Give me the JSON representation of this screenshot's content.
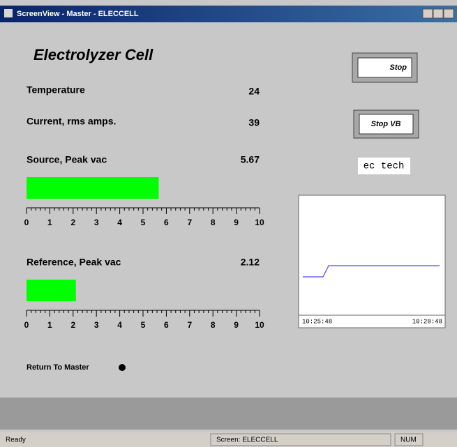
{
  "window": {
    "title": "ScreenView - Master - ELECCELL"
  },
  "screen": {
    "title": "Electrolyzer Cell",
    "readings": [
      {
        "label": "Temperature",
        "value": 24
      },
      {
        "label": "Current, rms amps.",
        "value": 39
      }
    ],
    "gauges": [
      {
        "label": "Source, Peak vac",
        "value": 5.67,
        "color": "#00ff00"
      },
      {
        "label": "Reference, Peak vac",
        "value": 2.12,
        "color": "#00ff00"
      }
    ],
    "scale": {
      "min": 0,
      "max": 10,
      "ticks": [
        0,
        1,
        2,
        3,
        4,
        5,
        6,
        7,
        8,
        9,
        10
      ]
    },
    "buttons": [
      "Stop",
      "Stop VB"
    ],
    "tag": "ec tech",
    "trend": {
      "time_labels": [
        "10:25:48",
        "10:28:48"
      ]
    },
    "link": "Return To Master"
  },
  "status_bar": [
    "Ready",
    "Screen: ELECCELL",
    "NUM"
  ]
}
